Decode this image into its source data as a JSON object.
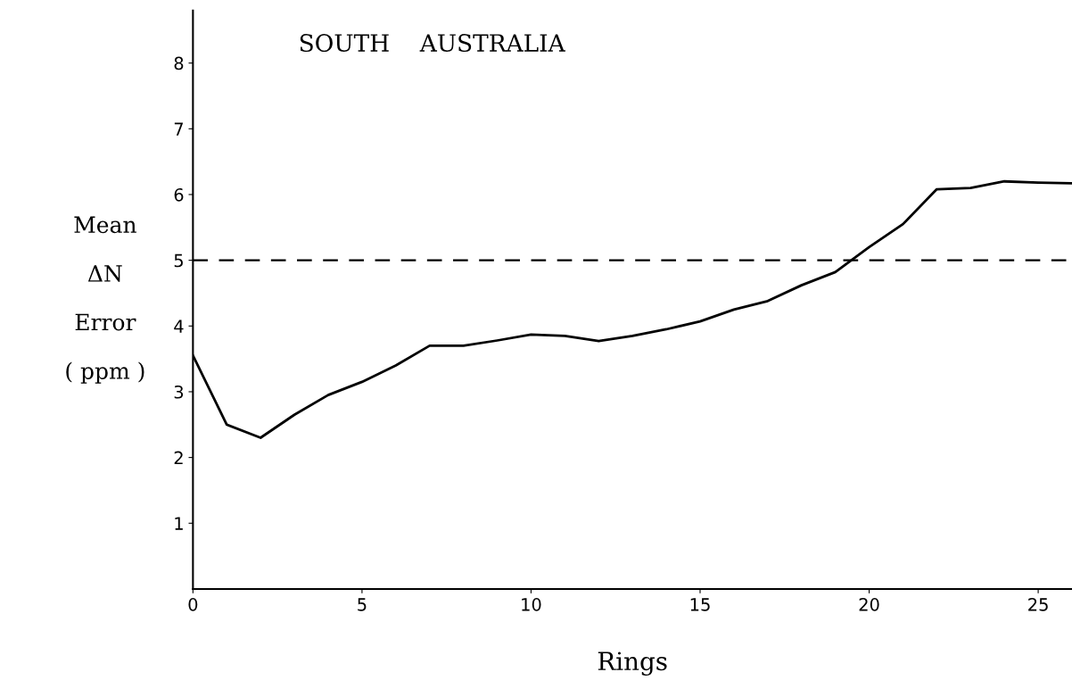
{
  "chart_data": {
    "type": "line",
    "title": "SOUTH    AUSTRALIA",
    "xlabel": "Rings",
    "ylabel": "Mean\nΔN\nError\n( ppm )",
    "x": [
      0,
      1,
      2,
      3,
      4,
      5,
      6,
      7,
      8,
      9,
      10,
      11,
      12,
      13,
      14,
      15,
      16,
      17,
      18,
      19,
      20,
      21,
      22,
      23,
      24,
      25,
      26
    ],
    "series": [
      {
        "color": "#000000",
        "values": [
          3.55,
          2.5,
          2.3,
          2.65,
          2.95,
          3.15,
          3.4,
          3.7,
          3.7,
          3.78,
          3.87,
          3.85,
          3.77,
          3.85,
          3.95,
          4.07,
          4.25,
          4.38,
          4.62,
          4.82,
          5.2,
          5.55,
          6.08,
          6.1,
          6.2,
          6.18,
          6.17
        ]
      }
    ],
    "xlim": [
      0,
      26
    ],
    "ylim": [
      0,
      8.8
    ],
    "xticks": [
      0,
      5,
      10,
      15,
      20,
      25
    ],
    "yticks": [
      1,
      2,
      3,
      4,
      5,
      6,
      7,
      8
    ],
    "ref_lines": [
      {
        "axis": "y",
        "value": 5,
        "line_style": "dashed",
        "color": "#000000"
      }
    ],
    "grid": false,
    "legend": false,
    "marker": "none",
    "line_style": "solid"
  }
}
